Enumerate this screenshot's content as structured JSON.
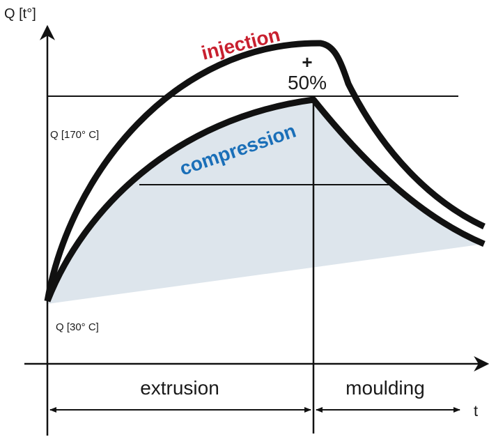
{
  "axis_label_y": "Q [t°]",
  "axis_label_x": "t",
  "curves": {
    "injection": "injection",
    "compression": "compression"
  },
  "peak": {
    "sign": "+",
    "percent": "50%"
  },
  "levels": {
    "high": "Q [170° C]",
    "low": "Q [30° C]"
  },
  "phases": {
    "extrusion": "extrusion",
    "moulding": "moulding"
  }
}
